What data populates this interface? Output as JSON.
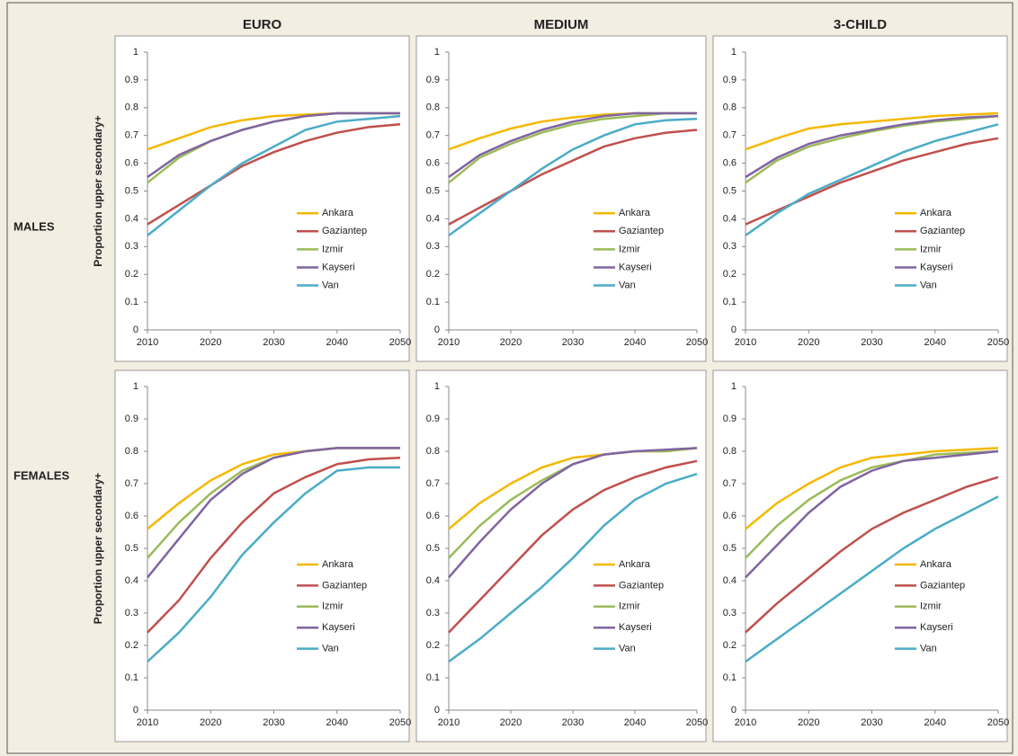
{
  "columns": [
    "EURO",
    "MEDIUM",
    "3-CHILD"
  ],
  "rows": [
    "MALES",
    "FEMALES"
  ],
  "chart_data": [
    {
      "type": "line",
      "ylabel": "Proportion  upper secondary+",
      "x": [
        2010,
        2015,
        2020,
        2025,
        2030,
        2035,
        2040,
        2045,
        2050
      ],
      "xlim": [
        2010,
        2050
      ],
      "xticks": [
        2010,
        2020,
        2030,
        2040,
        2050
      ],
      "ylim": [
        0,
        1
      ],
      "yticks": [
        0,
        0.1,
        0.2,
        0.3,
        0.4,
        0.5,
        0.6,
        0.7,
        0.8,
        0.9,
        1
      ],
      "legend": "right",
      "series": [
        {
          "name": "Ankara",
          "color": "#f5b800",
          "values": [
            0.65,
            0.69,
            0.73,
            0.755,
            0.77,
            0.775,
            0.78,
            0.78,
            0.78
          ]
        },
        {
          "name": "Gaziantep",
          "color": "#c0504d",
          "values": [
            0.38,
            0.45,
            0.52,
            0.59,
            0.64,
            0.68,
            0.71,
            0.73,
            0.74
          ]
        },
        {
          "name": "Izmir",
          "color": "#9bbb59",
          "values": [
            0.53,
            0.62,
            0.68,
            0.72,
            0.75,
            0.77,
            0.78,
            0.78,
            0.78
          ]
        },
        {
          "name": "Kayseri",
          "color": "#8064a2",
          "values": [
            0.55,
            0.63,
            0.68,
            0.72,
            0.75,
            0.77,
            0.78,
            0.78,
            0.78
          ]
        },
        {
          "name": "Van",
          "color": "#4bacc6",
          "values": [
            0.34,
            0.43,
            0.52,
            0.6,
            0.66,
            0.72,
            0.75,
            0.76,
            0.77
          ]
        }
      ]
    },
    {
      "type": "line",
      "x": [
        2010,
        2015,
        2020,
        2025,
        2030,
        2035,
        2040,
        2045,
        2050
      ],
      "xlim": [
        2010,
        2050
      ],
      "xticks": [
        2010,
        2020,
        2030,
        2040,
        2050
      ],
      "ylim": [
        0,
        1
      ],
      "yticks": [
        0,
        0.1,
        0.2,
        0.3,
        0.4,
        0.5,
        0.6,
        0.7,
        0.8,
        0.9,
        1
      ],
      "legend": "right",
      "series": [
        {
          "name": "Ankara",
          "color": "#f5b800",
          "values": [
            0.65,
            0.69,
            0.725,
            0.75,
            0.765,
            0.775,
            0.78,
            0.78,
            0.78
          ]
        },
        {
          "name": "Gaziantep",
          "color": "#c0504d",
          "values": [
            0.38,
            0.44,
            0.5,
            0.56,
            0.61,
            0.66,
            0.69,
            0.71,
            0.72
          ]
        },
        {
          "name": "Izmir",
          "color": "#9bbb59",
          "values": [
            0.53,
            0.62,
            0.67,
            0.71,
            0.74,
            0.76,
            0.77,
            0.78,
            0.78
          ]
        },
        {
          "name": "Kayseri",
          "color": "#8064a2",
          "values": [
            0.55,
            0.63,
            0.68,
            0.72,
            0.75,
            0.77,
            0.78,
            0.78,
            0.78
          ]
        },
        {
          "name": "Van",
          "color": "#4bacc6",
          "values": [
            0.34,
            0.42,
            0.5,
            0.58,
            0.65,
            0.7,
            0.74,
            0.755,
            0.76
          ]
        }
      ]
    },
    {
      "type": "line",
      "x": [
        2010,
        2015,
        2020,
        2025,
        2030,
        2035,
        2040,
        2045,
        2050
      ],
      "xlim": [
        2010,
        2050
      ],
      "xticks": [
        2010,
        2020,
        2030,
        2040,
        2050
      ],
      "ylim": [
        0,
        1
      ],
      "yticks": [
        0,
        0.1,
        0.2,
        0.3,
        0.4,
        0.5,
        0.6,
        0.7,
        0.8,
        0.9,
        1
      ],
      "legend": "right",
      "series": [
        {
          "name": "Ankara",
          "color": "#f5b800",
          "values": [
            0.65,
            0.69,
            0.725,
            0.74,
            0.75,
            0.76,
            0.77,
            0.775,
            0.78
          ]
        },
        {
          "name": "Gaziantep",
          "color": "#c0504d",
          "values": [
            0.38,
            0.43,
            0.48,
            0.53,
            0.57,
            0.61,
            0.64,
            0.67,
            0.69
          ]
        },
        {
          "name": "Izmir",
          "color": "#9bbb59",
          "values": [
            0.53,
            0.61,
            0.66,
            0.69,
            0.715,
            0.735,
            0.75,
            0.76,
            0.77
          ]
        },
        {
          "name": "Kayseri",
          "color": "#8064a2",
          "values": [
            0.55,
            0.62,
            0.67,
            0.7,
            0.72,
            0.74,
            0.755,
            0.765,
            0.77
          ]
        },
        {
          "name": "Van",
          "color": "#4bacc6",
          "values": [
            0.34,
            0.42,
            0.49,
            0.54,
            0.59,
            0.64,
            0.68,
            0.71,
            0.74
          ]
        }
      ]
    },
    {
      "type": "line",
      "ylabel": "Proportion  upper secondary+",
      "x": [
        2010,
        2015,
        2020,
        2025,
        2030,
        2035,
        2040,
        2045,
        2050
      ],
      "xlim": [
        2010,
        2050
      ],
      "xticks": [
        2010,
        2020,
        2030,
        2040,
        2050
      ],
      "ylim": [
        0,
        1
      ],
      "yticks": [
        0,
        0.1,
        0.2,
        0.3,
        0.4,
        0.5,
        0.6,
        0.7,
        0.8,
        0.9,
        1
      ],
      "legend": "right",
      "series": [
        {
          "name": "Ankara",
          "color": "#f5b800",
          "values": [
            0.56,
            0.64,
            0.71,
            0.76,
            0.79,
            0.8,
            0.81,
            0.81,
            0.81
          ]
        },
        {
          "name": "Gaziantep",
          "color": "#c0504d",
          "values": [
            0.24,
            0.34,
            0.47,
            0.58,
            0.67,
            0.72,
            0.76,
            0.775,
            0.78
          ]
        },
        {
          "name": "Izmir",
          "color": "#9bbb59",
          "values": [
            0.47,
            0.58,
            0.67,
            0.74,
            0.78,
            0.8,
            0.81,
            0.81,
            0.81
          ]
        },
        {
          "name": "Kayseri",
          "color": "#8064a2",
          "values": [
            0.41,
            0.53,
            0.65,
            0.73,
            0.78,
            0.8,
            0.81,
            0.81,
            0.81
          ]
        },
        {
          "name": "Van",
          "color": "#4bacc6",
          "values": [
            0.15,
            0.24,
            0.35,
            0.48,
            0.58,
            0.67,
            0.74,
            0.75,
            0.75
          ]
        }
      ]
    },
    {
      "type": "line",
      "x": [
        2010,
        2015,
        2020,
        2025,
        2030,
        2035,
        2040,
        2045,
        2050
      ],
      "xlim": [
        2010,
        2050
      ],
      "xticks": [
        2010,
        2020,
        2030,
        2040,
        2050
      ],
      "ylim": [
        0,
        1
      ],
      "yticks": [
        0,
        0.1,
        0.2,
        0.3,
        0.4,
        0.5,
        0.6,
        0.7,
        0.8,
        0.9,
        1
      ],
      "legend": "right",
      "series": [
        {
          "name": "Ankara",
          "color": "#f5b800",
          "values": [
            0.56,
            0.64,
            0.7,
            0.75,
            0.78,
            0.79,
            0.8,
            0.8,
            0.81
          ]
        },
        {
          "name": "Gaziantep",
          "color": "#c0504d",
          "values": [
            0.24,
            0.34,
            0.44,
            0.54,
            0.62,
            0.68,
            0.72,
            0.75,
            0.77
          ]
        },
        {
          "name": "Izmir",
          "color": "#9bbb59",
          "values": [
            0.47,
            0.57,
            0.65,
            0.71,
            0.76,
            0.79,
            0.8,
            0.8,
            0.81
          ]
        },
        {
          "name": "Kayseri",
          "color": "#8064a2",
          "values": [
            0.41,
            0.52,
            0.62,
            0.7,
            0.76,
            0.79,
            0.8,
            0.805,
            0.81
          ]
        },
        {
          "name": "Van",
          "color": "#4bacc6",
          "values": [
            0.15,
            0.22,
            0.3,
            0.38,
            0.47,
            0.57,
            0.65,
            0.7,
            0.73
          ]
        }
      ]
    },
    {
      "type": "line",
      "x": [
        2010,
        2015,
        2020,
        2025,
        2030,
        2035,
        2040,
        2045,
        2050
      ],
      "xlim": [
        2010,
        2050
      ],
      "xticks": [
        2010,
        2020,
        2030,
        2040,
        2050
      ],
      "ylim": [
        0,
        1
      ],
      "yticks": [
        0,
        0.1,
        0.2,
        0.3,
        0.4,
        0.5,
        0.6,
        0.7,
        0.8,
        0.9,
        1
      ],
      "legend": "right",
      "series": [
        {
          "name": "Ankara",
          "color": "#f5b800",
          "values": [
            0.56,
            0.64,
            0.7,
            0.75,
            0.78,
            0.79,
            0.8,
            0.805,
            0.81
          ]
        },
        {
          "name": "Gaziantep",
          "color": "#c0504d",
          "values": [
            0.24,
            0.33,
            0.41,
            0.49,
            0.56,
            0.61,
            0.65,
            0.69,
            0.72
          ]
        },
        {
          "name": "Izmir",
          "color": "#9bbb59",
          "values": [
            0.47,
            0.57,
            0.65,
            0.71,
            0.75,
            0.77,
            0.79,
            0.795,
            0.8
          ]
        },
        {
          "name": "Kayseri",
          "color": "#8064a2",
          "values": [
            0.41,
            0.51,
            0.61,
            0.69,
            0.74,
            0.77,
            0.78,
            0.79,
            0.8
          ]
        },
        {
          "name": "Van",
          "color": "#4bacc6",
          "values": [
            0.15,
            0.22,
            0.29,
            0.36,
            0.43,
            0.5,
            0.56,
            0.61,
            0.66
          ]
        }
      ]
    }
  ]
}
